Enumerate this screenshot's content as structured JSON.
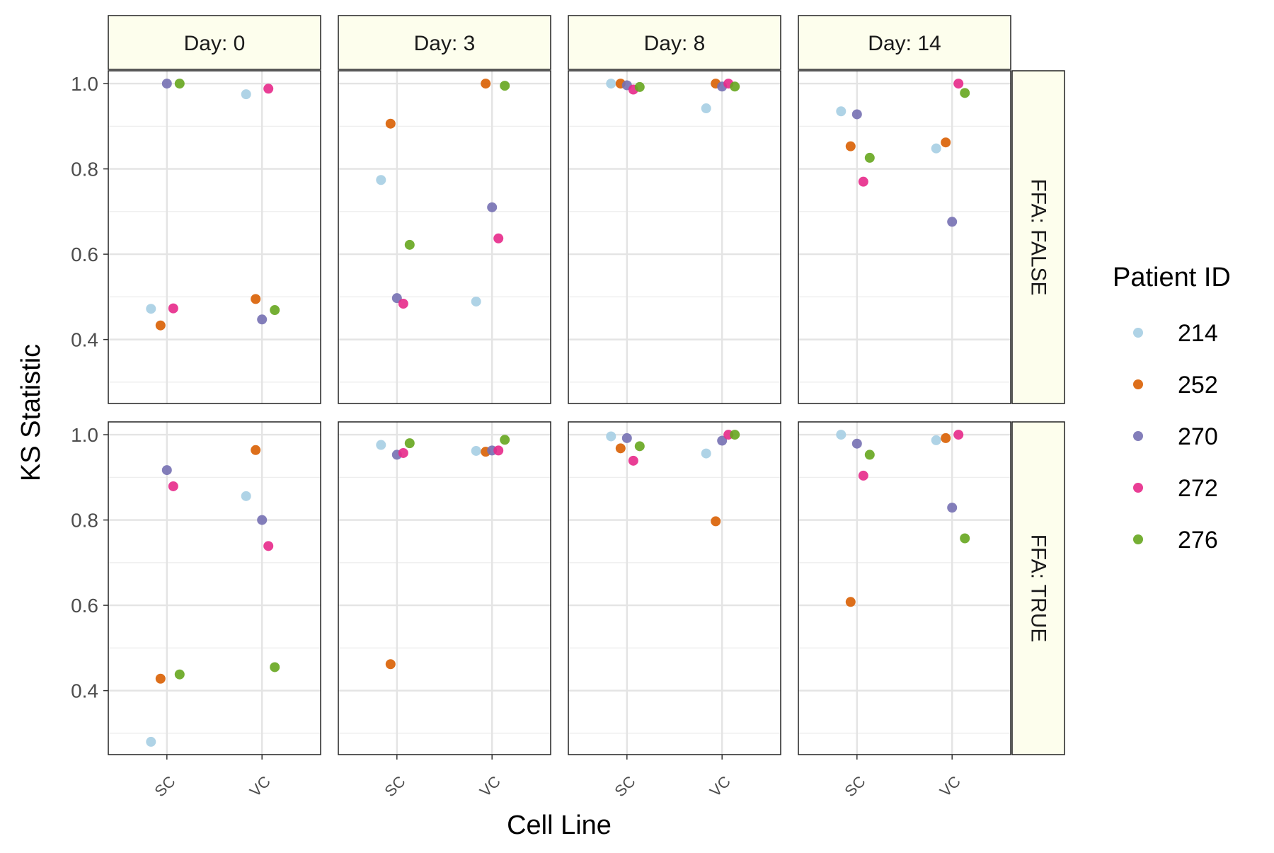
{
  "chart_data": {
    "type": "scatter",
    "xlabel": "Cell Line",
    "ylabel": "KS Statistic",
    "categories": [
      "SC",
      "VC"
    ],
    "ylim": [
      0.25,
      1.03
    ],
    "yticks": [
      0.4,
      0.6,
      0.8,
      1.0
    ],
    "ytick_labels": [
      "0.4",
      "0.6",
      "0.8",
      "1.0"
    ],
    "grid": true,
    "col_facets": [
      "Day: 0",
      "Day: 3",
      "Day: 8",
      "Day: 14"
    ],
    "row_facets": [
      "FFA: FALSE",
      "FFA: TRUE"
    ],
    "legend": {
      "title": "Patient ID",
      "placement": "right",
      "entries": [
        {
          "name": "214",
          "color": "#a6cee3"
        },
        {
          "name": "252",
          "color": "#d95f02"
        },
        {
          "name": "270",
          "color": "#7570b3"
        },
        {
          "name": "272",
          "color": "#e7298a"
        },
        {
          "name": "276",
          "color": "#66a61e"
        }
      ]
    },
    "panels": [
      {
        "col": 0,
        "row": 0,
        "points": [
          {
            "patient": "214",
            "cell_line": "SC",
            "y": 0.472
          },
          {
            "patient": "252",
            "cell_line": "SC",
            "y": 0.433
          },
          {
            "patient": "270",
            "cell_line": "SC",
            "y": 1.0
          },
          {
            "patient": "272",
            "cell_line": "SC",
            "y": 0.473
          },
          {
            "patient": "276",
            "cell_line": "SC",
            "y": 1.0
          },
          {
            "patient": "214",
            "cell_line": "VC",
            "y": 0.975
          },
          {
            "patient": "252",
            "cell_line": "VC",
            "y": 0.495
          },
          {
            "patient": "270",
            "cell_line": "VC",
            "y": 0.447
          },
          {
            "patient": "272",
            "cell_line": "VC",
            "y": 0.988
          },
          {
            "patient": "276",
            "cell_line": "VC",
            "y": 0.469
          }
        ]
      },
      {
        "col": 1,
        "row": 0,
        "points": [
          {
            "patient": "214",
            "cell_line": "SC",
            "y": 0.774
          },
          {
            "patient": "252",
            "cell_line": "SC",
            "y": 0.906
          },
          {
            "patient": "270",
            "cell_line": "SC",
            "y": 0.497
          },
          {
            "patient": "272",
            "cell_line": "SC",
            "y": 0.484
          },
          {
            "patient": "276",
            "cell_line": "SC",
            "y": 0.622
          },
          {
            "patient": "214",
            "cell_line": "VC",
            "y": 0.489
          },
          {
            "patient": "252",
            "cell_line": "VC",
            "y": 1.0
          },
          {
            "patient": "270",
            "cell_line": "VC",
            "y": 0.71
          },
          {
            "patient": "272",
            "cell_line": "VC",
            "y": 0.637
          },
          {
            "patient": "276",
            "cell_line": "VC",
            "y": 0.995
          }
        ]
      },
      {
        "col": 2,
        "row": 0,
        "points": [
          {
            "patient": "214",
            "cell_line": "SC",
            "y": 1.0
          },
          {
            "patient": "252",
            "cell_line": "SC",
            "y": 1.0
          },
          {
            "patient": "270",
            "cell_line": "SC",
            "y": 0.996
          },
          {
            "patient": "272",
            "cell_line": "SC",
            "y": 0.986
          },
          {
            "patient": "276",
            "cell_line": "SC",
            "y": 0.992
          },
          {
            "patient": "214",
            "cell_line": "VC",
            "y": 0.942
          },
          {
            "patient": "252",
            "cell_line": "VC",
            "y": 1.0
          },
          {
            "patient": "270",
            "cell_line": "VC",
            "y": 0.993
          },
          {
            "patient": "272",
            "cell_line": "VC",
            "y": 1.0
          },
          {
            "patient": "276",
            "cell_line": "VC",
            "y": 0.993
          }
        ]
      },
      {
        "col": 3,
        "row": 0,
        "points": [
          {
            "patient": "214",
            "cell_line": "SC",
            "y": 0.935
          },
          {
            "patient": "252",
            "cell_line": "SC",
            "y": 0.853
          },
          {
            "patient": "270",
            "cell_line": "SC",
            "y": 0.928
          },
          {
            "patient": "272",
            "cell_line": "SC",
            "y": 0.77
          },
          {
            "patient": "276",
            "cell_line": "SC",
            "y": 0.826
          },
          {
            "patient": "214",
            "cell_line": "VC",
            "y": 0.848
          },
          {
            "patient": "252",
            "cell_line": "VC",
            "y": 0.862
          },
          {
            "patient": "270",
            "cell_line": "VC",
            "y": 0.676
          },
          {
            "patient": "272",
            "cell_line": "VC",
            "y": 1.0
          },
          {
            "patient": "276",
            "cell_line": "VC",
            "y": 0.978
          }
        ]
      },
      {
        "col": 0,
        "row": 1,
        "points": [
          {
            "patient": "214",
            "cell_line": "SC",
            "y": 0.28
          },
          {
            "patient": "252",
            "cell_line": "SC",
            "y": 0.428
          },
          {
            "patient": "270",
            "cell_line": "SC",
            "y": 0.917
          },
          {
            "patient": "272",
            "cell_line": "SC",
            "y": 0.879
          },
          {
            "patient": "276",
            "cell_line": "SC",
            "y": 0.438
          },
          {
            "patient": "214",
            "cell_line": "VC",
            "y": 0.856
          },
          {
            "patient": "252",
            "cell_line": "VC",
            "y": 0.964
          },
          {
            "patient": "270",
            "cell_line": "VC",
            "y": 0.8
          },
          {
            "patient": "272",
            "cell_line": "VC",
            "y": 0.739
          },
          {
            "patient": "276",
            "cell_line": "VC",
            "y": 0.455
          }
        ]
      },
      {
        "col": 1,
        "row": 1,
        "points": [
          {
            "patient": "214",
            "cell_line": "SC",
            "y": 0.976
          },
          {
            "patient": "252",
            "cell_line": "SC",
            "y": 0.462
          },
          {
            "patient": "270",
            "cell_line": "SC",
            "y": 0.953
          },
          {
            "patient": "272",
            "cell_line": "SC",
            "y": 0.957
          },
          {
            "patient": "276",
            "cell_line": "SC",
            "y": 0.98
          },
          {
            "patient": "214",
            "cell_line": "VC",
            "y": 0.962
          },
          {
            "patient": "252",
            "cell_line": "VC",
            "y": 0.96
          },
          {
            "patient": "270",
            "cell_line": "VC",
            "y": 0.963
          },
          {
            "patient": "272",
            "cell_line": "VC",
            "y": 0.963
          },
          {
            "patient": "276",
            "cell_line": "VC",
            "y": 0.988
          }
        ]
      },
      {
        "col": 2,
        "row": 1,
        "points": [
          {
            "patient": "214",
            "cell_line": "SC",
            "y": 0.996
          },
          {
            "patient": "252",
            "cell_line": "SC",
            "y": 0.968
          },
          {
            "patient": "270",
            "cell_line": "SC",
            "y": 0.992
          },
          {
            "patient": "272",
            "cell_line": "SC",
            "y": 0.939
          },
          {
            "patient": "276",
            "cell_line": "SC",
            "y": 0.973
          },
          {
            "patient": "214",
            "cell_line": "VC",
            "y": 0.956
          },
          {
            "patient": "252",
            "cell_line": "VC",
            "y": 0.797
          },
          {
            "patient": "270",
            "cell_line": "VC",
            "y": 0.986
          },
          {
            "patient": "272",
            "cell_line": "VC",
            "y": 1.0
          },
          {
            "patient": "276",
            "cell_line": "VC",
            "y": 1.0
          }
        ]
      },
      {
        "col": 3,
        "row": 1,
        "points": [
          {
            "patient": "214",
            "cell_line": "SC",
            "y": 1.0
          },
          {
            "patient": "252",
            "cell_line": "SC",
            "y": 0.608
          },
          {
            "patient": "270",
            "cell_line": "SC",
            "y": 0.979
          },
          {
            "patient": "272",
            "cell_line": "SC",
            "y": 0.904
          },
          {
            "patient": "276",
            "cell_line": "SC",
            "y": 0.953
          },
          {
            "patient": "214",
            "cell_line": "VC",
            "y": 0.987
          },
          {
            "patient": "252",
            "cell_line": "VC",
            "y": 0.992
          },
          {
            "patient": "270",
            "cell_line": "VC",
            "y": 0.829
          },
          {
            "patient": "272",
            "cell_line": "VC",
            "y": 1.0
          },
          {
            "patient": "276",
            "cell_line": "VC",
            "y": 0.757
          }
        ]
      }
    ]
  }
}
